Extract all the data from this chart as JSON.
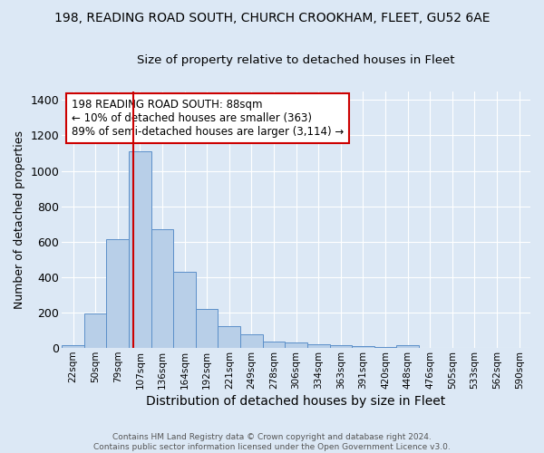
{
  "title1": "198, READING ROAD SOUTH, CHURCH CROOKHAM, FLEET, GU52 6AE",
  "title2": "Size of property relative to detached houses in Fleet",
  "xlabel": "Distribution of detached houses by size in Fleet",
  "ylabel": "Number of detached properties",
  "bar_labels": [
    "22sqm",
    "50sqm",
    "79sqm",
    "107sqm",
    "136sqm",
    "164sqm",
    "192sqm",
    "221sqm",
    "249sqm",
    "278sqm",
    "306sqm",
    "334sqm",
    "363sqm",
    "391sqm",
    "420sqm",
    "448sqm",
    "476sqm",
    "505sqm",
    "533sqm",
    "562sqm",
    "590sqm"
  ],
  "bar_heights": [
    15,
    195,
    615,
    1110,
    670,
    430,
    220,
    125,
    75,
    35,
    30,
    20,
    15,
    10,
    5,
    15,
    0,
    0,
    0,
    0,
    0
  ],
  "bar_color": "#b8cfe8",
  "bar_edge_color": "#5b8fc9",
  "figure_bg_color": "#dce8f5",
  "axes_bg_color": "#dce8f5",
  "grid_color": "#ffffff",
  "vline_color": "#cc0000",
  "vline_x_index": 2.72,
  "annotation_text": "198 READING ROAD SOUTH: 88sqm\n← 10% of detached houses are smaller (363)\n89% of semi-detached houses are larger (3,114) →",
  "annotation_box_facecolor": "#ffffff",
  "annotation_box_edgecolor": "#cc0000",
  "ylim": [
    0,
    1450
  ],
  "yticks": [
    0,
    200,
    400,
    600,
    800,
    1000,
    1200,
    1400
  ],
  "footer_text": "Contains HM Land Registry data © Crown copyright and database right 2024.\nContains public sector information licensed under the Open Government Licence v3.0."
}
